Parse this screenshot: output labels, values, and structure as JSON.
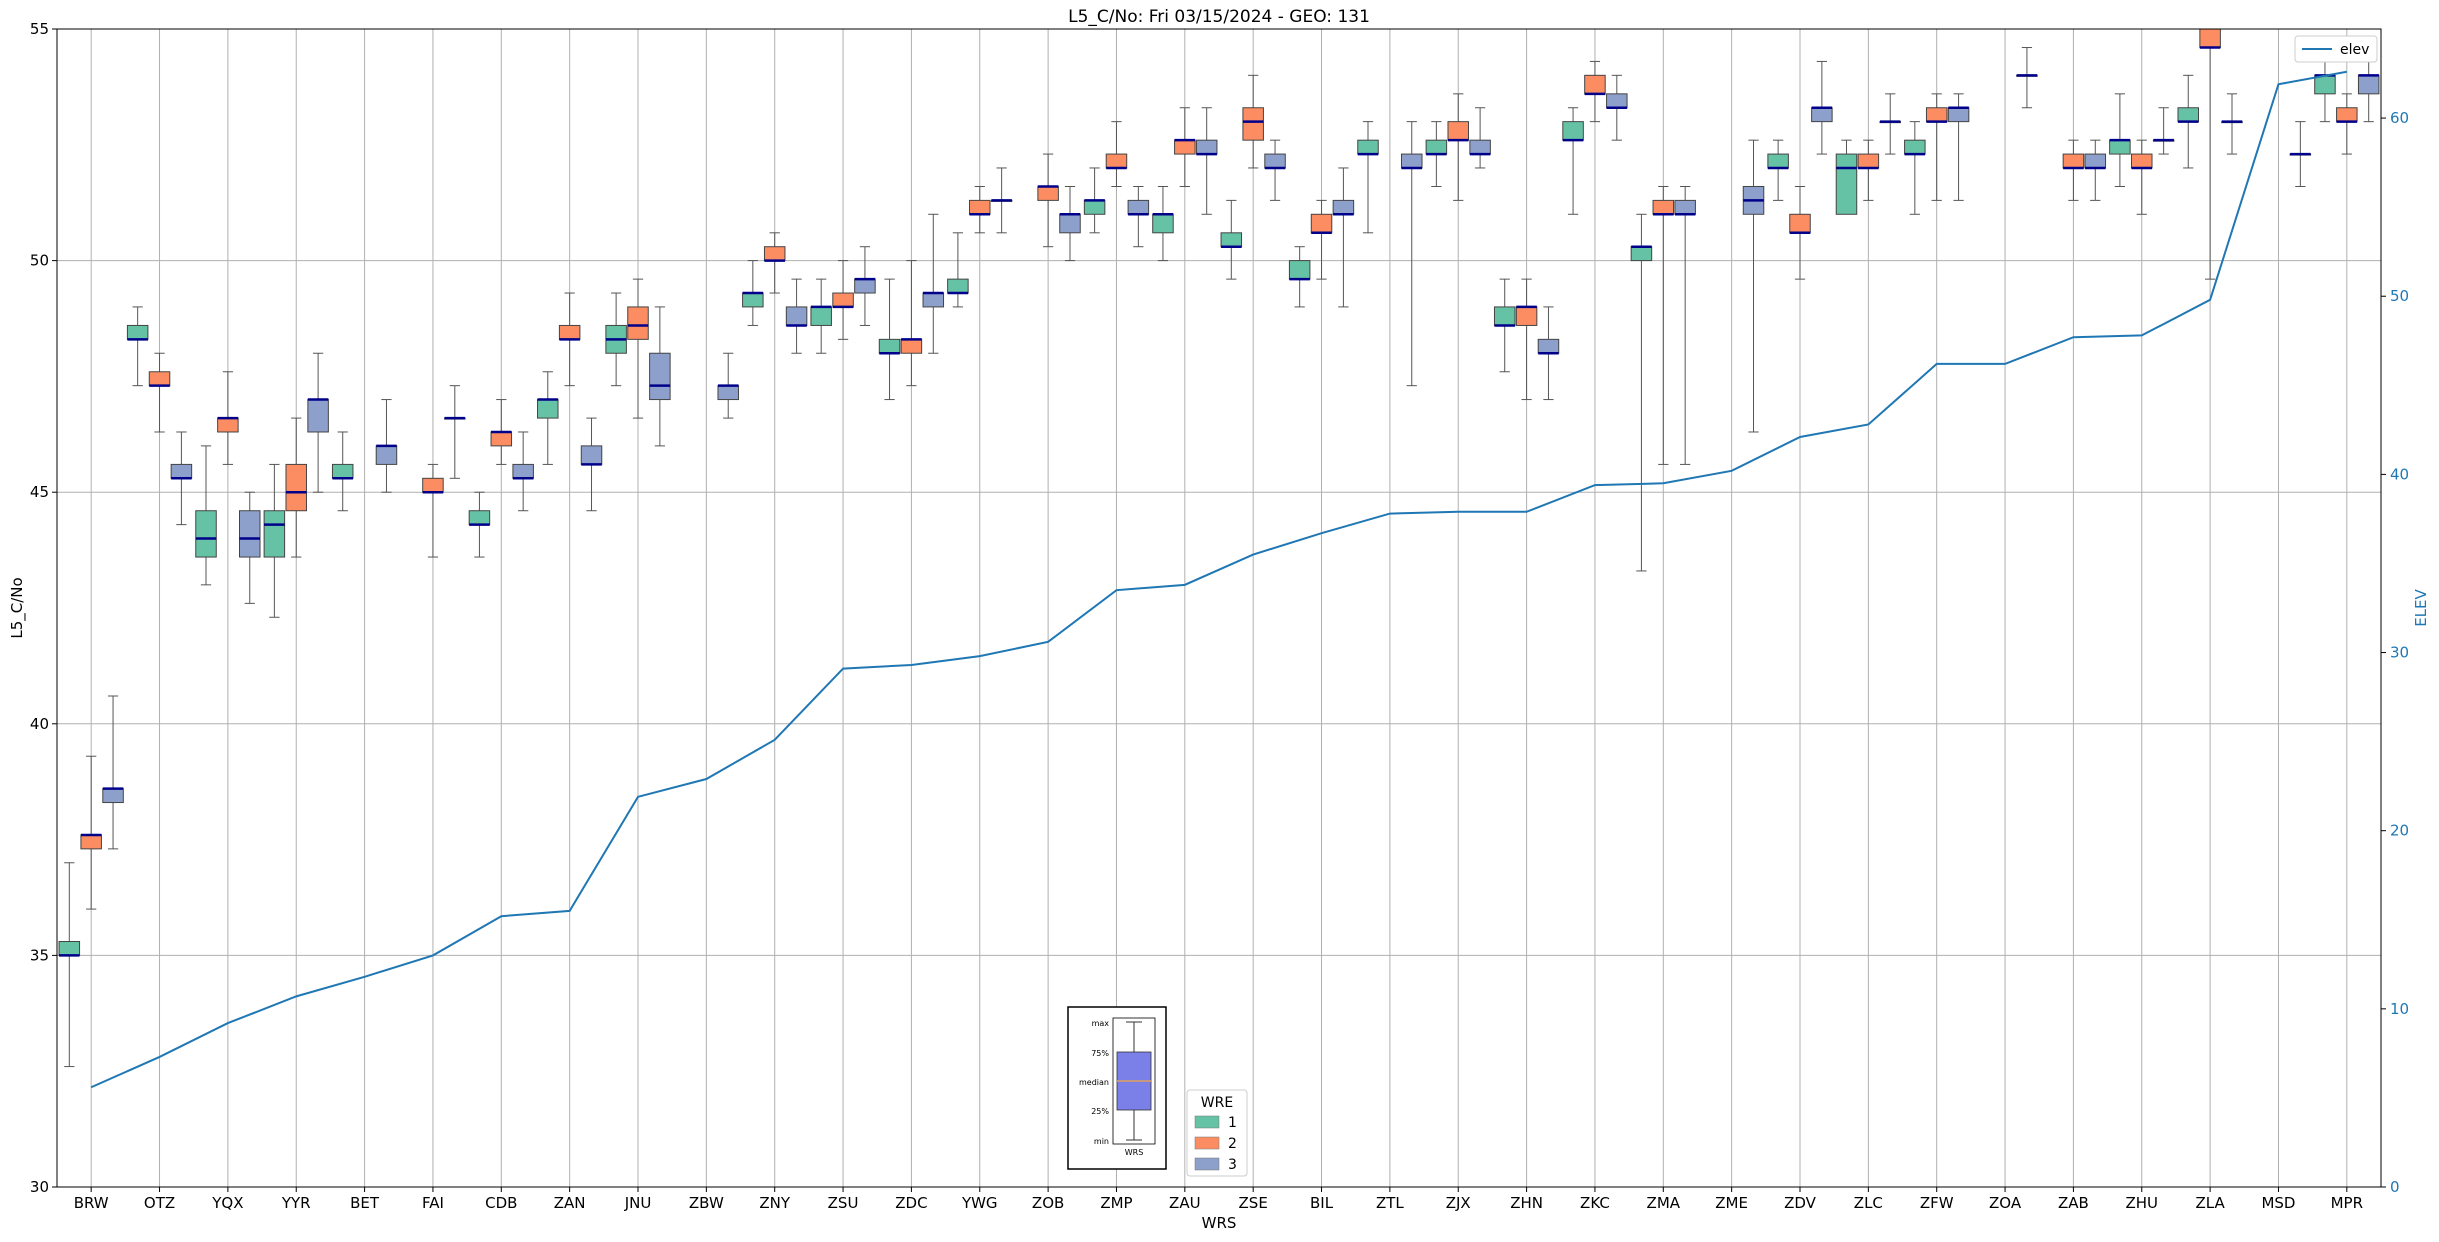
{
  "chart_data": {
    "type": "box",
    "title": "L5_C/No: Fri 03/15/2024 - GEO: 131",
    "xlabel": "WRS",
    "ylabel": "L5_C/No",
    "ylabel_right": "ELEV",
    "ylim": [
      30,
      55
    ],
    "ylim_right": [
      0,
      65
    ],
    "yticks": [
      30,
      35,
      40,
      45,
      50,
      55
    ],
    "yticks_right": [
      0,
      10,
      20,
      30,
      40,
      50,
      60
    ],
    "grid": true,
    "categories": [
      "BRW",
      "OTZ",
      "YQX",
      "YYR",
      "BET",
      "FAI",
      "CDB",
      "ZAN",
      "JNU",
      "ZBW",
      "ZNY",
      "ZSU",
      "ZDC",
      "YWG",
      "ZOB",
      "ZMP",
      "ZAU",
      "ZSE",
      "BIL",
      "ZTL",
      "ZJX",
      "ZHN",
      "ZKC",
      "ZMA",
      "ZME",
      "ZDV",
      "ZLC",
      "ZFW",
      "ZOA",
      "ZAB",
      "ZHU",
      "ZLA",
      "MSD",
      "MPR"
    ],
    "colors": {
      "1": "#66c2a5",
      "2": "#fc8d62",
      "3": "#8da0cb",
      "median": "#00008b",
      "whisker": "#555555",
      "elev_line": "#1f77b4",
      "inset_box": "#7b7fe8",
      "inset_median": "#e0a060"
    },
    "legend_title": "WRE",
    "legend_entries": [
      "1",
      "2",
      "3"
    ],
    "series_elev_name": "elev",
    "series": [
      {
        "name": "1",
        "boxes": [
          [
            0,
            32.6,
            35.0,
            35.0,
            35.3,
            37.0
          ],
          [
            1,
            47.3,
            48.3,
            48.3,
            48.6,
            49.0
          ],
          [
            2,
            43.0,
            43.6,
            44.0,
            44.6,
            46.0
          ],
          [
            3,
            42.3,
            43.6,
            44.3,
            44.6,
            45.6
          ],
          [
            4,
            44.6,
            45.3,
            45.3,
            45.6,
            46.3
          ],
          [
            6,
            43.6,
            44.3,
            44.3,
            44.6,
            45.0
          ],
          [
            7,
            45.6,
            46.6,
            47.0,
            47.0,
            47.6
          ],
          [
            8,
            47.3,
            48.0,
            48.3,
            48.6,
            49.3
          ],
          [
            10,
            48.6,
            49.0,
            49.3,
            49.3,
            50.0
          ],
          [
            11,
            48.0,
            48.6,
            49.0,
            49.0,
            49.6
          ],
          [
            12,
            47.0,
            48.0,
            48.0,
            48.3,
            49.6
          ],
          [
            13,
            49.0,
            49.3,
            49.3,
            49.6,
            50.6
          ],
          [
            15,
            50.6,
            51.0,
            51.3,
            51.3,
            52.0
          ],
          [
            16,
            50.0,
            50.6,
            51.0,
            51.0,
            51.6
          ],
          [
            17,
            49.6,
            50.3,
            50.3,
            50.6,
            51.3
          ],
          [
            18,
            49.0,
            49.6,
            49.6,
            50.0,
            50.3
          ],
          [
            19,
            50.6,
            52.3,
            52.3,
            52.6,
            53.0
          ],
          [
            20,
            51.6,
            52.3,
            52.3,
            52.6,
            53.0
          ],
          [
            21,
            47.6,
            48.6,
            48.6,
            49.0,
            49.6
          ],
          [
            22,
            51.0,
            52.6,
            52.6,
            53.0,
            53.3
          ],
          [
            23,
            43.3,
            50.0,
            50.3,
            50.3,
            51.0
          ],
          [
            25,
            51.3,
            52.0,
            52.0,
            52.3,
            52.6
          ],
          [
            26,
            51.3,
            51.0,
            52.0,
            52.3,
            52.6
          ],
          [
            27,
            51.0,
            52.3,
            52.3,
            52.6,
            53.0
          ],
          [
            30,
            51.6,
            52.3,
            52.6,
            52.6,
            53.6
          ],
          [
            31,
            52.0,
            53.0,
            53.0,
            53.3,
            54.0
          ],
          [
            33,
            53.0,
            53.6,
            54.0,
            54.0,
            54.6
          ]
        ]
      },
      {
        "name": "2",
        "boxes": [
          [
            0,
            36.0,
            37.3,
            37.6,
            37.6,
            39.3
          ],
          [
            1,
            46.3,
            47.3,
            47.3,
            47.6,
            48.0
          ],
          [
            2,
            45.6,
            46.3,
            46.6,
            46.6,
            47.6
          ],
          [
            3,
            43.6,
            44.6,
            45.0,
            45.6,
            46.6
          ],
          [
            5,
            43.6,
            45.0,
            45.0,
            45.3,
            45.6
          ],
          [
            6,
            45.6,
            46.0,
            46.3,
            46.3,
            47.0
          ],
          [
            7,
            47.3,
            48.3,
            48.3,
            48.6,
            49.3
          ],
          [
            8,
            46.6,
            48.3,
            48.6,
            49.0,
            49.6
          ],
          [
            10,
            49.3,
            50.0,
            50.0,
            50.3,
            50.6
          ],
          [
            11,
            48.3,
            49.0,
            49.0,
            49.3,
            50.0
          ],
          [
            12,
            47.3,
            48.0,
            48.3,
            48.3,
            50.0
          ],
          [
            13,
            50.6,
            51.0,
            51.0,
            51.3,
            51.6
          ],
          [
            14,
            50.3,
            51.3,
            51.6,
            51.6,
            52.3
          ],
          [
            15,
            51.6,
            52.0,
            52.0,
            52.3,
            53.0
          ],
          [
            16,
            51.6,
            52.3,
            52.6,
            52.6,
            53.3
          ],
          [
            17,
            52.0,
            52.6,
            53.0,
            53.3,
            54.0
          ],
          [
            18,
            49.6,
            50.6,
            50.6,
            51.0,
            51.3
          ],
          [
            20,
            51.3,
            52.6,
            52.6,
            53.0,
            53.6
          ],
          [
            21,
            47.0,
            48.6,
            49.0,
            49.0,
            49.6
          ],
          [
            22,
            53.0,
            53.6,
            53.6,
            54.0,
            54.3
          ],
          [
            23,
            45.6,
            51.0,
            51.0,
            51.3,
            51.6
          ],
          [
            25,
            49.6,
            50.6,
            50.6,
            51.0,
            51.6
          ],
          [
            26,
            51.3,
            52.0,
            52.0,
            52.3,
            52.6
          ],
          [
            27,
            51.3,
            53.0,
            53.0,
            53.3,
            53.6
          ],
          [
            29,
            51.3,
            52.0,
            52.0,
            52.3,
            52.6
          ],
          [
            30,
            51.0,
            52.0,
            52.0,
            52.3,
            52.6
          ],
          [
            31,
            49.6,
            54.6,
            54.6,
            55.0,
            55.0
          ],
          [
            33,
            52.3,
            53.0,
            53.0,
            53.3,
            53.6
          ]
        ]
      },
      {
        "name": "3",
        "boxes": [
          [
            0,
            37.3,
            38.3,
            38.6,
            38.6,
            40.6
          ],
          [
            1,
            44.3,
            45.3,
            45.3,
            45.6,
            46.3
          ],
          [
            2,
            42.6,
            43.6,
            44.0,
            44.6,
            45.0
          ],
          [
            3,
            45.0,
            46.3,
            47.0,
            47.0,
            48.0
          ],
          [
            4,
            45.0,
            45.6,
            46.0,
            46.0,
            47.0
          ],
          [
            5,
            45.3,
            46.6,
            46.6,
            46.6,
            47.3
          ],
          [
            6,
            44.6,
            45.3,
            45.3,
            45.6,
            46.3
          ],
          [
            7,
            44.6,
            45.6,
            45.6,
            46.0,
            46.6
          ],
          [
            8,
            46.0,
            47.0,
            47.3,
            48.0,
            49.0
          ],
          [
            9,
            46.6,
            47.0,
            47.3,
            47.3,
            48.0
          ],
          [
            10,
            48.0,
            48.6,
            48.6,
            49.0,
            49.6
          ],
          [
            11,
            48.6,
            49.3,
            49.6,
            49.6,
            50.3
          ],
          [
            12,
            48.0,
            49.0,
            49.3,
            49.3,
            51.0
          ],
          [
            13,
            50.6,
            51.3,
            51.3,
            51.3,
            52.0
          ],
          [
            14,
            50.0,
            50.6,
            51.0,
            51.0,
            51.6
          ],
          [
            15,
            50.3,
            51.0,
            51.0,
            51.3,
            51.6
          ],
          [
            16,
            51.0,
            52.3,
            52.3,
            52.6,
            53.3
          ],
          [
            17,
            51.3,
            52.0,
            52.0,
            52.3,
            52.6
          ],
          [
            18,
            49.0,
            51.0,
            51.0,
            51.3,
            52.0
          ],
          [
            19,
            47.3,
            52.0,
            52.0,
            52.3,
            53.0
          ],
          [
            20,
            52.0,
            52.3,
            52.3,
            52.6,
            53.3
          ],
          [
            21,
            47.0,
            48.0,
            48.0,
            48.3,
            49.0
          ],
          [
            22,
            52.6,
            53.3,
            53.3,
            53.6,
            54.0
          ],
          [
            23,
            45.6,
            51.0,
            51.0,
            51.3,
            51.6
          ],
          [
            24,
            46.3,
            51.0,
            51.3,
            51.6,
            52.6
          ],
          [
            25,
            52.3,
            53.0,
            53.3,
            53.3,
            54.3
          ],
          [
            26,
            52.3,
            53.0,
            53.0,
            53.0,
            53.6
          ],
          [
            27,
            51.3,
            53.0,
            53.3,
            53.3,
            53.6
          ],
          [
            28,
            53.3,
            54.0,
            54.0,
            54.0,
            54.6
          ],
          [
            29,
            51.3,
            52.0,
            52.0,
            52.3,
            52.6
          ],
          [
            30,
            52.3,
            52.6,
            52.6,
            52.6,
            53.3
          ],
          [
            31,
            52.3,
            53.0,
            53.0,
            53.0,
            53.6
          ],
          [
            32,
            51.6,
            52.3,
            52.3,
            52.3,
            53.0
          ],
          [
            33,
            53.0,
            53.6,
            54.0,
            54.0,
            54.6
          ]
        ]
      }
    ],
    "elev": [
      5.6,
      7.3,
      9.2,
      10.7,
      11.8,
      13.0,
      15.2,
      15.5,
      21.9,
      22.9,
      25.1,
      29.1,
      29.3,
      29.8,
      30.6,
      33.5,
      33.8,
      35.5,
      36.7,
      37.8,
      37.9,
      37.9,
      39.4,
      39.5,
      40.2,
      42.1,
      42.8,
      46.2,
      46.2,
      47.7,
      47.8,
      49.8,
      61.9,
      62.6
    ],
    "inset": {
      "labels": [
        "max",
        "75%",
        "median",
        "25%",
        "min"
      ],
      "xlabel": "WRS"
    }
  }
}
